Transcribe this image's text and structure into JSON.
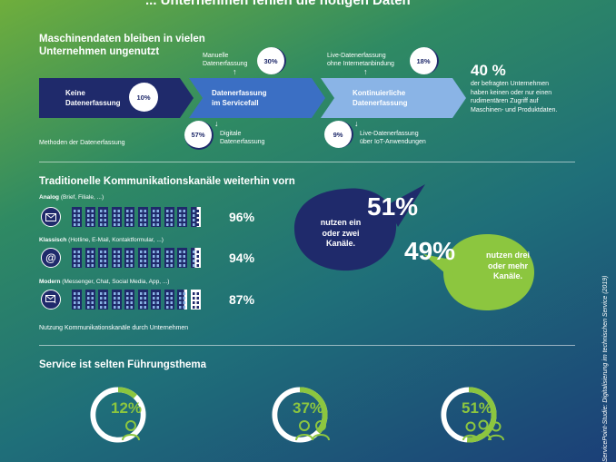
{
  "header": {
    "title": "... Unternehmen fehlen die nötigen Daten"
  },
  "section1": {
    "title_line1": "Maschinendaten bleiben in vielen",
    "title_line2": "Unternehmen ungenutzt",
    "stages": [
      {
        "label_line1": "Keine",
        "label_line2": "Datenerfassung",
        "pct": "10%"
      },
      {
        "label_line1": "Datenerfassung",
        "label_line2": "im Servicefall"
      },
      {
        "label_line1": "Kontinuierliche",
        "label_line2": "Datenerfassung"
      }
    ],
    "manual": {
      "line1": "Manuelle",
      "line2": "Datenerfassung",
      "pct": "30%"
    },
    "digital": {
      "line1": "Digitale",
      "line2": "Datenerfassung",
      "pct": "57%"
    },
    "live_no_internet": {
      "line1": "Live-Datenerfassung",
      "line2": "ohne Internetanbindung",
      "pct": "18%"
    },
    "live_iot": {
      "line1": "Live-Datenerfassung",
      "line2": "über IoT-Anwendungen",
      "pct": "9%"
    },
    "stat_big": "40 %",
    "stat_lines": [
      "der befragten Unternehmen",
      "haben keinen oder nur einen",
      "rudimentären Zugriff auf",
      "Maschinen- und Produktdaten."
    ],
    "caption": "Methoden der Datenerfassung"
  },
  "section2": {
    "title": "Traditionelle Kommunikationskanäle weiterhin vorn",
    "rows": [
      {
        "label_bold": "Analog",
        "label_rest": " (Brief, Filiale, ...)",
        "pct": "96%",
        "icon": "envelope-icon",
        "fill": 0.96
      },
      {
        "label_bold": "Klassisch",
        "label_rest": " (Hotline, E-Mail, Kontaktformular, ...)",
        "pct": "94%",
        "icon": "at-icon",
        "fill": 0.94
      },
      {
        "label_bold": "Modern",
        "label_rest": " (Messenger, Chat, Social Media, App, ...)",
        "pct": "87%",
        "icon": "chat-icon",
        "fill": 0.87
      }
    ],
    "bubble1": {
      "pct": "51%",
      "lines": [
        "nutzen ein",
        "oder zwei",
        "Kanäle."
      ]
    },
    "bubble2": {
      "pct": "49%",
      "lines": [
        "nutzen drei",
        "oder mehr",
        "Kanäle."
      ]
    },
    "caption": "Nutzung Kommunikationskanäle durch Unternehmen"
  },
  "section3": {
    "title": "Service ist selten Führungsthema",
    "rings": [
      {
        "pct": "12%",
        "value": 0.12,
        "icon": "person-icon"
      },
      {
        "pct": "37%",
        "value": 0.37,
        "icon": "two-persons-icon"
      },
      {
        "pct": "51%",
        "value": 0.51,
        "icon": "three-persons-icon"
      }
    ]
  },
  "source": "ServicePoint-Studie: Digitalisierung im technischen Service (2019)",
  "colors": {
    "navy": "#1f2a6b",
    "lime": "#8cc63f",
    "blue_mid": "#3b6fc4",
    "blue_light": "#8ab4e6"
  }
}
